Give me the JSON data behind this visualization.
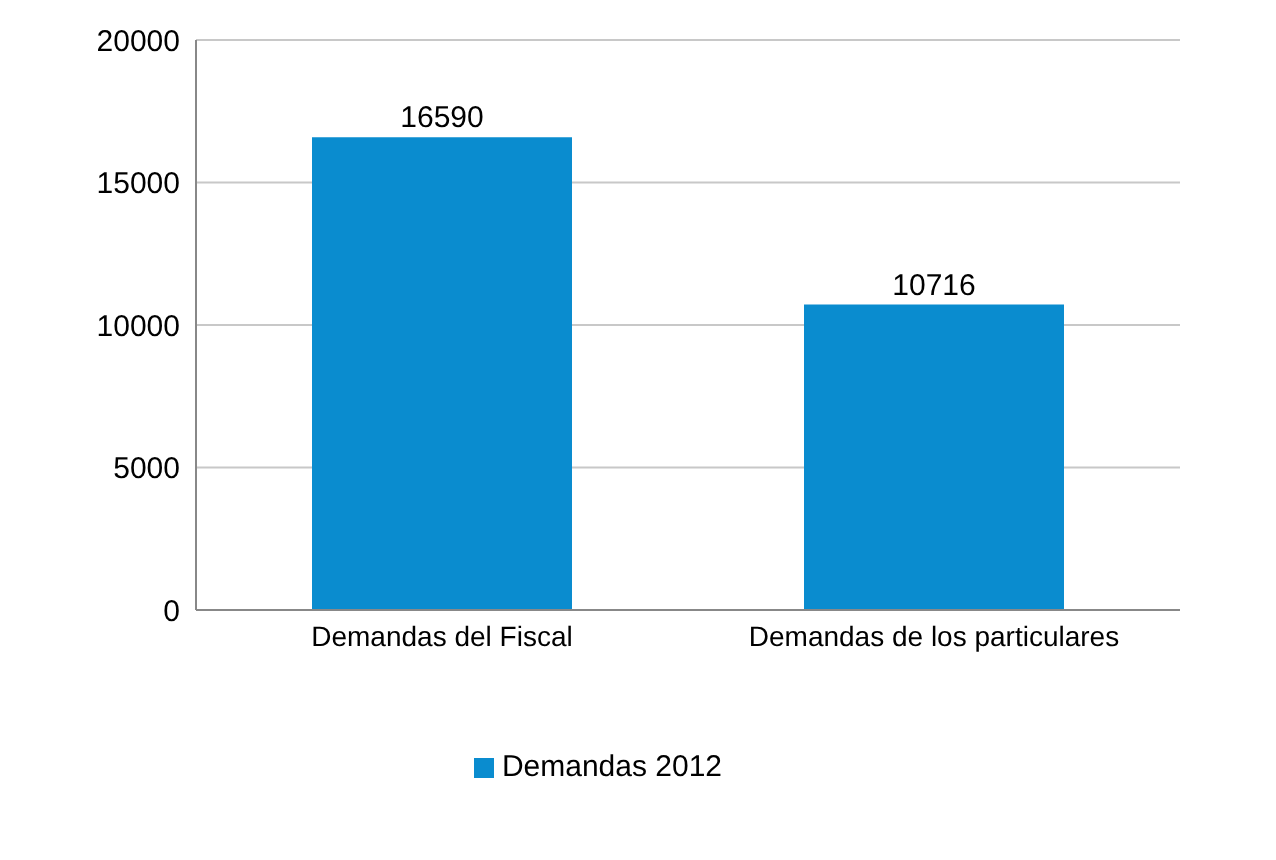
{
  "chart_data": {
    "type": "bar",
    "categories": [
      "Demandas del Fiscal",
      "Demandas de los particulares"
    ],
    "series": [
      {
        "name": "Demandas 2012",
        "color": "#0a8ccf",
        "values": [
          16590,
          10716
        ]
      }
    ],
    "ylim": [
      0,
      20000
    ],
    "yticks": [
      0,
      5000,
      10000,
      15000,
      20000
    ],
    "grid": "y",
    "legend": "bottom",
    "data_labels": true
  }
}
